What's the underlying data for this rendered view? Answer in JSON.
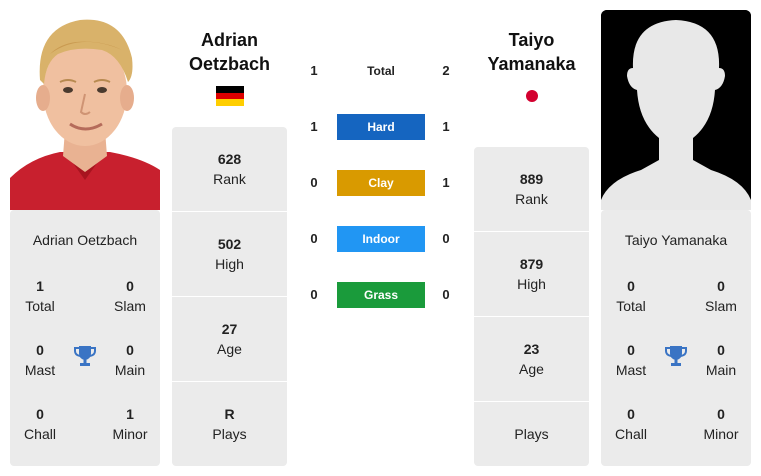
{
  "player1": {
    "name": "Adrian Oetzbach",
    "title_line1": "Adrian",
    "title_line2": "Oetzbach",
    "country_flag": "germany-flag",
    "card": {
      "total": "1",
      "total_label": "Total",
      "slam": "0",
      "slam_label": "Slam",
      "mast": "0",
      "mast_label": "Mast",
      "main": "0",
      "main_label": "Main",
      "chall": "0",
      "chall_label": "Chall",
      "minor": "1",
      "minor_label": "Minor"
    },
    "stats": {
      "rank": "628",
      "rank_label": "Rank",
      "high": "502",
      "high_label": "High",
      "age": "27",
      "age_label": "Age",
      "plays": "R",
      "plays_label": "Plays"
    }
  },
  "player2": {
    "name": "Taiyo Yamanaka",
    "title_line1": "Taiyo",
    "title_line2": "Yamanaka",
    "country_flag": "japan-flag",
    "card": {
      "total": "0",
      "total_label": "Total",
      "slam": "0",
      "slam_label": "Slam",
      "mast": "0",
      "mast_label": "Mast",
      "main": "0",
      "main_label": "Main",
      "chall": "0",
      "chall_label": "Chall",
      "minor": "0",
      "minor_label": "Minor"
    },
    "stats": {
      "rank": "889",
      "rank_label": "Rank",
      "high": "879",
      "high_label": "High",
      "age": "23",
      "age_label": "Age",
      "plays": "",
      "plays_label": "Plays"
    }
  },
  "h2h": {
    "total": {
      "label": "Total",
      "p1": "1",
      "p2": "2"
    },
    "hard": {
      "label": "Hard",
      "p1": "1",
      "p2": "1",
      "color": "#1565c0"
    },
    "clay": {
      "label": "Clay",
      "p1": "0",
      "p2": "1",
      "color": "#d99a00"
    },
    "indoor": {
      "label": "Indoor",
      "p1": "0",
      "p2": "0",
      "color": "#2196f3"
    },
    "grass": {
      "label": "Grass",
      "p1": "0",
      "p2": "0",
      "color": "#1a9b3b"
    }
  },
  "icons": {
    "trophy": "trophy-icon",
    "silhouette": "player-silhouette"
  },
  "colors": {
    "card_bg": "#ebebeb",
    "trophy": "#3a74c4",
    "photo2_bg": "#000000",
    "de_black": "#000000",
    "de_red": "#dd0000",
    "de_gold": "#ffce00",
    "jp_red": "#d3002f"
  }
}
